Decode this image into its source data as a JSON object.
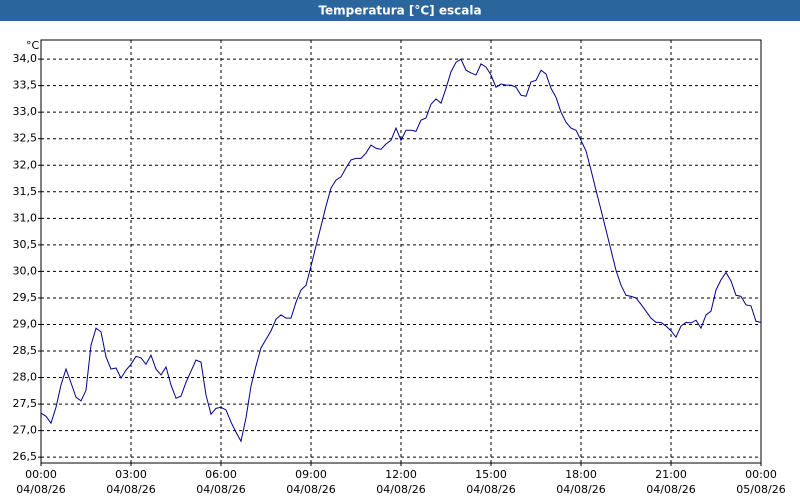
{
  "chart_data": {
    "type": "line",
    "title": "Temperatura [°C] escala",
    "y_label": "°C",
    "grid": true,
    "xlim": [
      0,
      1440
    ],
    "ylim": [
      26.39,
      34.36
    ],
    "xticks": [
      {
        "value": 0,
        "label": "00:00",
        "date": "04/08/26"
      },
      {
        "value": 180,
        "label": "03:00",
        "date": "04/08/26"
      },
      {
        "value": 360,
        "label": "06:00",
        "date": "04/08/26"
      },
      {
        "value": 540,
        "label": "09:00",
        "date": "04/08/26"
      },
      {
        "value": 720,
        "label": "12:00",
        "date": "04/08/26"
      },
      {
        "value": 900,
        "label": "15:00",
        "date": "04/08/26"
      },
      {
        "value": 1080,
        "label": "18:00",
        "date": "04/08/26"
      },
      {
        "value": 1260,
        "label": "21:00",
        "date": "04/08/26"
      },
      {
        "value": 1440,
        "label": "00:00",
        "date": "05/08/26"
      }
    ],
    "yticks": [
      {
        "value": 26.5,
        "label": "26,5"
      },
      {
        "value": 27,
        "label": "27,0"
      },
      {
        "value": 27.5,
        "label": "27,5"
      },
      {
        "value": 28,
        "label": "28,0"
      },
      {
        "value": 28.5,
        "label": "28,5"
      },
      {
        "value": 29,
        "label": "29,0"
      },
      {
        "value": 29.5,
        "label": "29,5"
      },
      {
        "value": 30,
        "label": "30,0"
      },
      {
        "value": 30.5,
        "label": "30,5"
      },
      {
        "value": 31,
        "label": "31,0"
      },
      {
        "value": 31.5,
        "label": "31,5"
      },
      {
        "value": 32,
        "label": "32,0"
      },
      {
        "value": 32.5,
        "label": "32,5"
      },
      {
        "value": 33,
        "label": "33,0"
      },
      {
        "value": 33.5,
        "label": "33,5"
      },
      {
        "value": 34,
        "label": "34,0"
      }
    ],
    "x": [
      0,
      10,
      20,
      30,
      40,
      50,
      60,
      70,
      80,
      90,
      100,
      110,
      120,
      130,
      140,
      150,
      160,
      170,
      180,
      190,
      200,
      210,
      220,
      230,
      240,
      250,
      260,
      270,
      280,
      290,
      300,
      310,
      320,
      330,
      340,
      350,
      360,
      370,
      380,
      390,
      400,
      410,
      420,
      430,
      440,
      450,
      460,
      470,
      480,
      490,
      500,
      510,
      520,
      530,
      540,
      550,
      560,
      570,
      580,
      590,
      600,
      610,
      620,
      630,
      640,
      650,
      660,
      670,
      680,
      690,
      700,
      710,
      720,
      730,
      740,
      750,
      760,
      770,
      780,
      790,
      800,
      810,
      820,
      830,
      840,
      850,
      860,
      870,
      880,
      890,
      900,
      910,
      920,
      930,
      940,
      950,
      960,
      970,
      980,
      990,
      1000,
      1010,
      1020,
      1030,
      1040,
      1050,
      1060,
      1070,
      1080,
      1090,
      1100,
      1110,
      1120,
      1130,
      1140,
      1150,
      1160,
      1170,
      1180,
      1190,
      1200,
      1210,
      1220,
      1230,
      1240,
      1250,
      1260,
      1270,
      1280,
      1290,
      1300,
      1310,
      1320,
      1330,
      1340,
      1350,
      1360,
      1370,
      1380,
      1390,
      1400,
      1410,
      1420,
      1430,
      1440
    ],
    "series": [
      {
        "color": "#00008b",
        "values": [
          27.33,
          27.27,
          27.14,
          27.44,
          27.86,
          28.16,
          27.9,
          27.63,
          27.56,
          27.76,
          28.61,
          28.93,
          28.86,
          28.39,
          28.16,
          28.18,
          27.99,
          28.14,
          28.25,
          28.4,
          28.37,
          28.25,
          28.42,
          28.16,
          28.05,
          28.2,
          27.86,
          27.61,
          27.65,
          27.91,
          28.12,
          28.33,
          28.29,
          27.67,
          27.31,
          27.42,
          27.44,
          27.39,
          27.16,
          26.97,
          26.8,
          27.24,
          27.84,
          28.22,
          28.56,
          28.72,
          28.88,
          29.1,
          29.18,
          29.12,
          29.12,
          29.42,
          29.65,
          29.74,
          30.1,
          30.48,
          30.85,
          31.23,
          31.57,
          31.72,
          31.78,
          31.95,
          32.1,
          32.13,
          32.13,
          32.23,
          32.38,
          32.32,
          32.3,
          32.4,
          32.47,
          32.7,
          32.47,
          32.66,
          32.66,
          32.64,
          32.85,
          32.89,
          33.15,
          33.25,
          33.17,
          33.45,
          33.76,
          33.94,
          34.0,
          33.79,
          33.74,
          33.7,
          33.91,
          33.85,
          33.7,
          33.47,
          33.53,
          33.51,
          33.51,
          33.47,
          33.32,
          33.3,
          33.57,
          33.6,
          33.79,
          33.72,
          33.45,
          33.28,
          33.0,
          32.81,
          32.7,
          32.66,
          32.47,
          32.27,
          31.91,
          31.53,
          31.16,
          30.78,
          30.4,
          30.02,
          29.74,
          29.55,
          29.53,
          29.5,
          29.38,
          29.25,
          29.12,
          29.04,
          29.04,
          28.97,
          28.88,
          28.76,
          28.97,
          29.04,
          29.03,
          29.08,
          28.93,
          29.18,
          29.25,
          29.65,
          29.84,
          29.98,
          29.82,
          29.55,
          29.53,
          29.37,
          29.35,
          29.06,
          29.04
        ]
      }
    ]
  }
}
